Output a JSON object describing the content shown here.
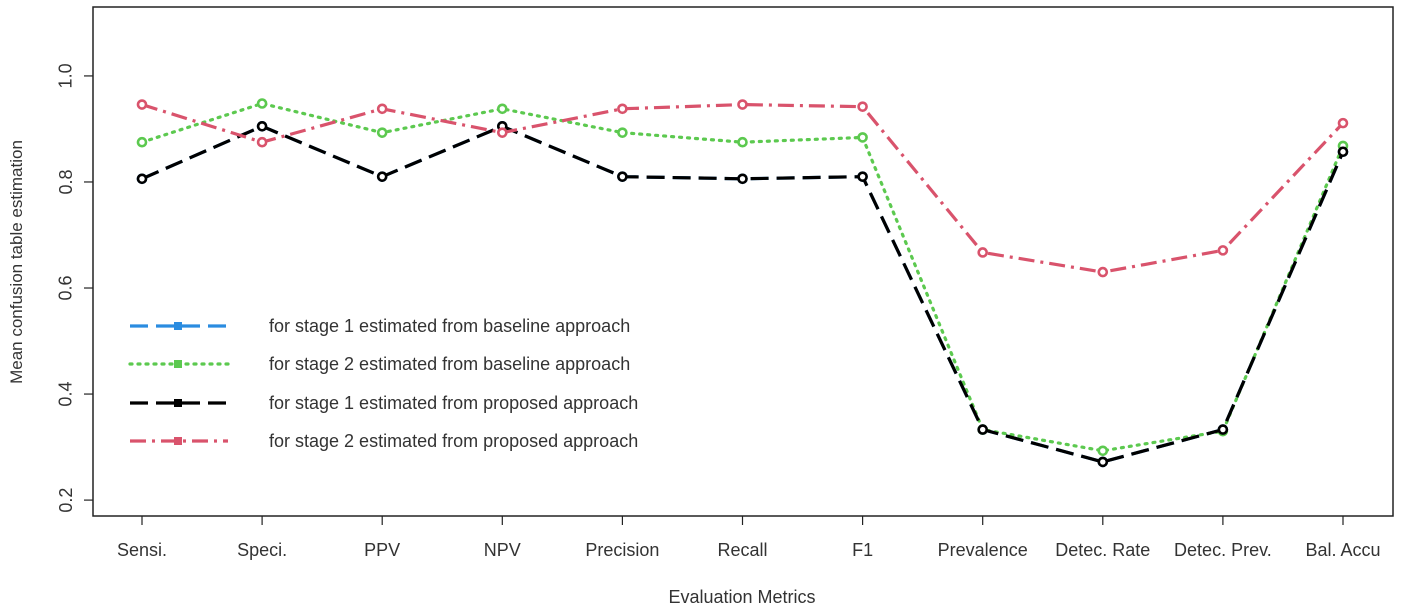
{
  "chart_data": {
    "type": "line",
    "title": "",
    "xlabel": "Evaluation Metrics",
    "ylabel": "Mean confusion table estimation",
    "categories": [
      "Sensi.",
      "Speci.",
      "PPV",
      "NPV",
      "Precision",
      "Recall",
      "F1",
      "Prevalence",
      "Detec. Rate",
      "Detec. Prev.",
      "Bal. Accu"
    ],
    "ylim": [
      0.17,
      1.13
    ],
    "yticks": [
      0.2,
      0.4,
      0.6,
      0.8,
      1.0
    ],
    "ytick_labels": [
      "0.2",
      "0.4",
      "0.6",
      "0.8",
      "1.0"
    ],
    "grid": false,
    "legend_position": "center-left",
    "series": [
      {
        "name": "for stage 1 estimated from baseline approach",
        "color": "#2a8ce0",
        "dash": "long-dash",
        "values": [
          0.806,
          0.905,
          0.81,
          0.905,
          0.81,
          0.806,
          0.81,
          0.333,
          0.272,
          0.333,
          0.857
        ]
      },
      {
        "name": "for stage 2 estimated from baseline approach",
        "color": "#5cc94f",
        "dash": "dotted",
        "values": [
          0.875,
          0.948,
          0.893,
          0.938,
          0.893,
          0.875,
          0.884,
          0.333,
          0.293,
          0.33,
          0.868
        ]
      },
      {
        "name": "for stage 1 estimated from proposed approach",
        "color": "#000000",
        "dash": "long-dash",
        "values": [
          0.806,
          0.905,
          0.81,
          0.905,
          0.81,
          0.806,
          0.81,
          0.333,
          0.272,
          0.333,
          0.857
        ]
      },
      {
        "name": "for stage 2 estimated from proposed approach",
        "color": "#d9536c",
        "dash": "dash-dot",
        "values": [
          0.946,
          0.875,
          0.938,
          0.893,
          0.938,
          0.946,
          0.942,
          0.667,
          0.63,
          0.671,
          0.911
        ]
      }
    ]
  }
}
